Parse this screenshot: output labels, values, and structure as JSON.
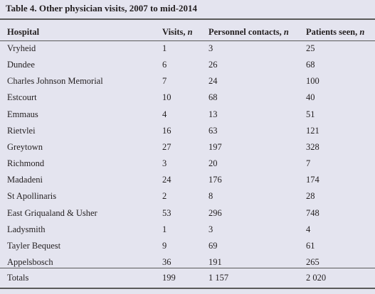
{
  "title": "Table 4. Other physician visits, 2007 to mid-2014",
  "table": {
    "columns": [
      {
        "label": "Hospital"
      },
      {
        "label": "Visits,",
        "unit": "n"
      },
      {
        "label": "Personnel contacts,",
        "unit": "n"
      },
      {
        "label": "Patients seen,",
        "unit": "n"
      }
    ],
    "rows": [
      [
        "Vryheid",
        1,
        3,
        25
      ],
      [
        "Dundee",
        6,
        26,
        68
      ],
      [
        "Charles Johnson Memorial",
        7,
        24,
        100
      ],
      [
        "Estcourt",
        10,
        68,
        40
      ],
      [
        "Emmaus",
        4,
        13,
        51
      ],
      [
        "Rietvlei",
        16,
        63,
        121
      ],
      [
        "Greytown",
        27,
        197,
        328
      ],
      [
        "Richmond",
        3,
        20,
        7
      ],
      [
        "Madadeni",
        24,
        176,
        174
      ],
      [
        "St Apollinaris",
        2,
        8,
        28
      ],
      [
        "East Griqualand & Usher",
        53,
        296,
        748
      ],
      [
        "Ladysmith",
        1,
        3,
        4
      ],
      [
        "Tayler Bequest",
        9,
        69,
        61
      ],
      [
        "Appelsbosch",
        36,
        191,
        265
      ]
    ],
    "totals": [
      "Totals",
      199,
      "1 157",
      "2 020"
    ]
  }
}
